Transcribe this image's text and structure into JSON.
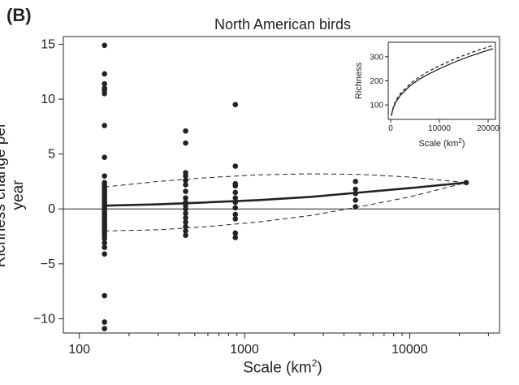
{
  "panel_label": "(B)",
  "chart_data": [
    {
      "type": "scatter",
      "title": "North American birds",
      "xlabel": "Scale (km",
      "xlabel_sup": "2",
      "xlabel_close": ")",
      "ylabel": "Richness change per year",
      "xscale": "log",
      "xlim": [
        80,
        35000
      ],
      "ylim": [
        -11.3,
        15.7
      ],
      "xticks": [
        100,
        1000,
        10000
      ],
      "xtick_labels": [
        "100",
        "1000",
        "10000"
      ],
      "yticks": [
        -10,
        -5,
        0,
        5,
        10,
        15
      ],
      "ytick_labels": [
        "−10",
        "−5",
        "0",
        "5",
        "10",
        "15"
      ],
      "reference_line_y": 0,
      "points": [
        {
          "x": 142,
          "ys": [
            14.9,
            12.3,
            11.4,
            11.0,
            10.8,
            10.5,
            7.6,
            4.7,
            3.0,
            2.4,
            2.2,
            2.0,
            1.8,
            1.6,
            1.4,
            1.2,
            1.0,
            0.8,
            0.6,
            0.4,
            0.2,
            0.0,
            -0.2,
            -0.4,
            -0.6,
            -0.8,
            -1.0,
            -1.2,
            -1.4,
            -1.6,
            -1.8,
            -2.0,
            -2.2,
            -2.4,
            -2.7,
            -3.1,
            -3.5,
            -4.1,
            -7.9,
            -10.3,
            -10.9
          ]
        },
        {
          "x": 440,
          "ys": [
            7.1,
            6.0,
            3.3,
            3.0,
            2.6,
            2.2,
            1.6,
            1.0,
            0.6,
            0.3,
            0.0,
            -0.4,
            -0.8,
            -1.2,
            -1.6,
            -2.0,
            -2.4
          ]
        },
        {
          "x": 880,
          "ys": [
            9.5,
            3.9,
            2.3,
            2.1,
            1.5,
            1.0,
            0.6,
            0.1,
            -0.5,
            -0.9,
            -2.2,
            -2.6
          ]
        },
        {
          "x": 4700,
          "ys": [
            2.5,
            1.8,
            1.4,
            0.8,
            0.2
          ]
        },
        {
          "x": 22000,
          "ys": [
            2.4
          ]
        }
      ],
      "fit_line": {
        "style": "solid",
        "x": [
          142,
          300,
          600,
          1200,
          2500,
          5000,
          10000,
          22000
        ],
        "y": [
          0.3,
          0.42,
          0.6,
          0.8,
          1.1,
          1.5,
          1.9,
          2.4
        ]
      },
      "upper_band": {
        "style": "dashed",
        "x": [
          142,
          300,
          600,
          1200,
          2500,
          5000,
          10000,
          22000
        ],
        "y": [
          2.0,
          2.5,
          2.85,
          3.1,
          3.2,
          3.15,
          2.9,
          2.4
        ]
      },
      "lower_band": {
        "style": "dashed",
        "x": [
          142,
          300,
          600,
          1200,
          2500,
          5000,
          10000,
          22000
        ],
        "y": [
          -2.0,
          -1.9,
          -1.6,
          -1.2,
          -0.6,
          0.2,
          1.1,
          2.4
        ]
      }
    },
    {
      "type": "line",
      "inset": true,
      "xlabel": "Scale (km",
      "xlabel_sup": "2",
      "xlabel_close": ")",
      "ylabel": "Richness",
      "xlim": [
        -500,
        21500
      ],
      "ylim": [
        40,
        360
      ],
      "xticks": [
        0,
        10000,
        20000
      ],
      "xtick_labels": [
        "0",
        "10000",
        "20000"
      ],
      "yticks": [
        100,
        200,
        300
      ],
      "ytick_labels": [
        "100",
        "200",
        "300"
      ],
      "series": [
        {
          "style": "solid",
          "x": [
            140,
            500,
            1000,
            2000,
            4000,
            6000,
            8000,
            10000,
            12000,
            14000,
            16000,
            18000,
            20000,
            21000
          ],
          "y": [
            55,
            85,
            110,
            140,
            180,
            208,
            230,
            250,
            268,
            285,
            300,
            314,
            327,
            333
          ]
        },
        {
          "style": "dashed",
          "x": [
            140,
            500,
            1000,
            2000,
            4000,
            6000,
            8000,
            10000,
            12000,
            14000,
            16000,
            18000,
            20000,
            21000
          ],
          "y": [
            55,
            88,
            115,
            147,
            188,
            218,
            242,
            262,
            281,
            298,
            313,
            327,
            340,
            347
          ]
        }
      ]
    }
  ]
}
